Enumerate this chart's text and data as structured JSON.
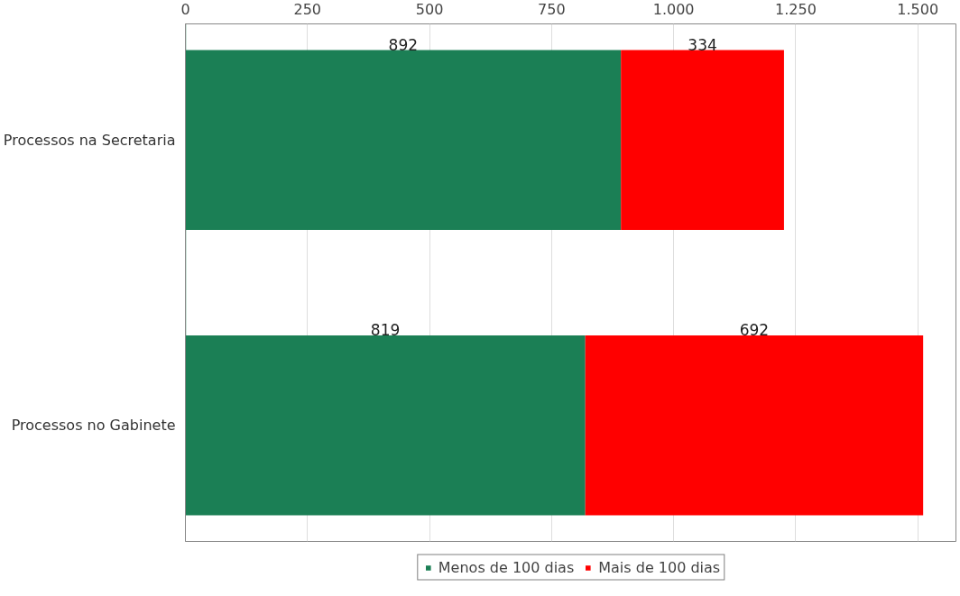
{
  "chart_data": {
    "type": "bar",
    "orientation": "horizontal",
    "stacked": true,
    "categories": [
      "Processos na Secretaria",
      "Processos no Gabinete"
    ],
    "series": [
      {
        "name": "Menos de 100 dias",
        "color": "#1b7f55",
        "values": [
          892,
          819
        ]
      },
      {
        "name": "Mais de 100 dias",
        "color": "#ff0000",
        "values": [
          334,
          692
        ]
      }
    ],
    "xlim": [
      0,
      1580
    ],
    "xticks": [
      0,
      250,
      500,
      750,
      {
        "value": 1000,
        "label": "1.000"
      },
      {
        "value": 1250,
        "label": "1.250"
      },
      {
        "value": 1500,
        "label": "1.500"
      }
    ],
    "data_labels": true,
    "grid": "x",
    "legend": "bottom"
  }
}
